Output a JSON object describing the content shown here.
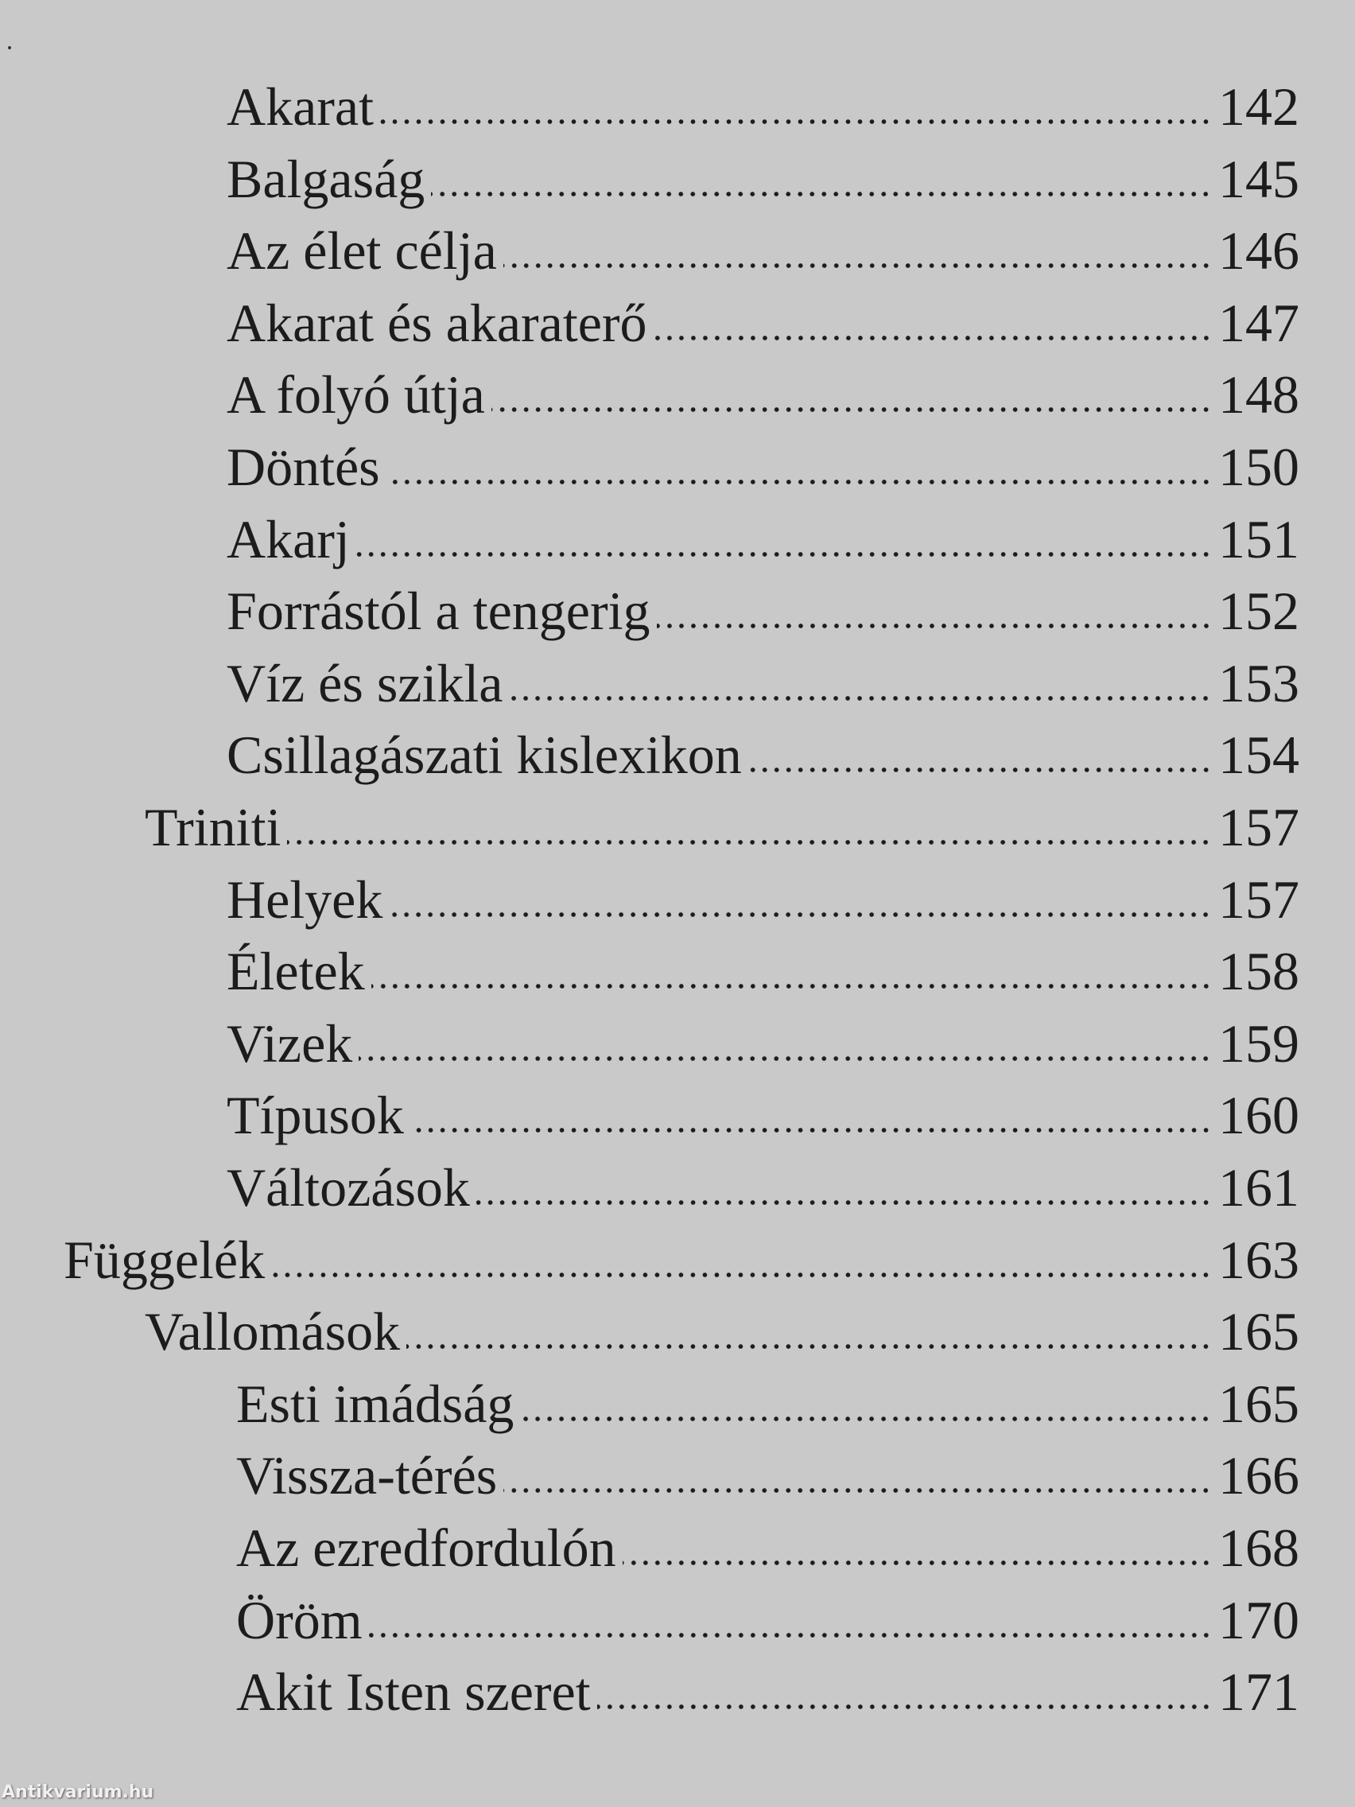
{
  "toc": [
    {
      "title": "Akarat",
      "page": "142",
      "level": 2
    },
    {
      "title": "Balgaság",
      "page": "145",
      "level": 2
    },
    {
      "title": "Az élet célja",
      "page": "146",
      "level": 2
    },
    {
      "title": "Akarat és akaraterő",
      "page": "147",
      "level": 2
    },
    {
      "title": "A folyó útja",
      "page": "148",
      "level": 2
    },
    {
      "title": "Döntés",
      "page": "150",
      "level": 2
    },
    {
      "title": "Akarj",
      "page": "151",
      "level": 2
    },
    {
      "title": "Forrástól a tengerig",
      "page": "152",
      "level": 2
    },
    {
      "title": "Víz és szikla",
      "page": "153",
      "level": 2
    },
    {
      "title": "Csillagászati kislexikon",
      "page": "154",
      "level": 2
    },
    {
      "title": "Triniti",
      "page": "157",
      "level": 1
    },
    {
      "title": "Helyek",
      "page": "157",
      "level": 2
    },
    {
      "title": "Életek",
      "page": "158",
      "level": 2
    },
    {
      "title": "Vizek",
      "page": "159",
      "level": 2
    },
    {
      "title": "Típusok",
      "page": "160",
      "level": 2
    },
    {
      "title": "Változások",
      "page": "161",
      "level": 2
    },
    {
      "title": "Függelék",
      "page": "163",
      "level": 0
    },
    {
      "title": "Vallomások",
      "page": "165",
      "level": 1
    },
    {
      "title": "Esti imádság",
      "page": "165",
      "level": 3
    },
    {
      "title": "Vissza-térés",
      "page": "166",
      "level": 3
    },
    {
      "title": "Az ezredfordulón",
      "page": "168",
      "level": 3
    },
    {
      "title": "Öröm",
      "page": "170",
      "level": 3
    },
    {
      "title": "Akit Isten szeret",
      "page": "171",
      "level": 3
    }
  ],
  "watermark": "Antikvarium.hu"
}
